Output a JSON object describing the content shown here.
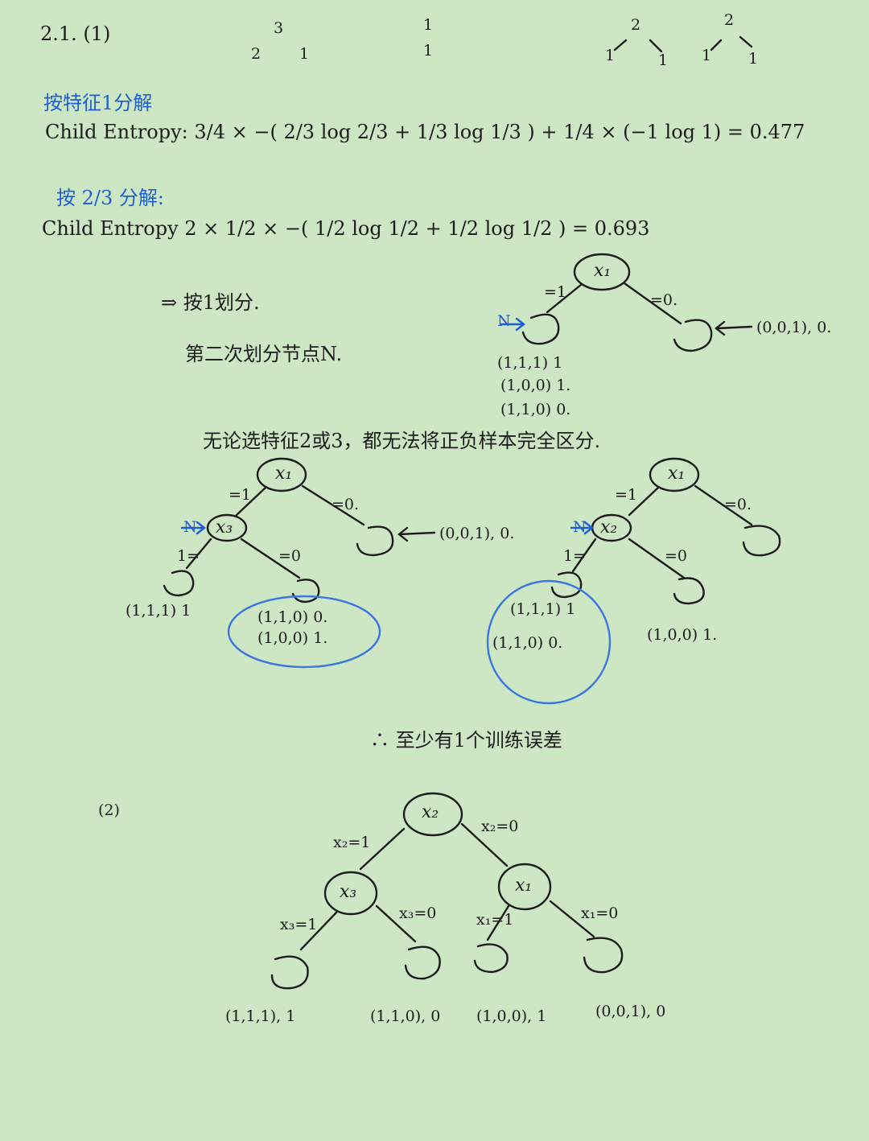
{
  "header": {
    "problem": "2.1. (1)",
    "tree_a_root": "3",
    "tree_a_left": "2",
    "tree_a_right": "1",
    "tree_b_root": "1",
    "tree_b_child": "1",
    "tree_c_root": "2",
    "tree_c_left": "1",
    "tree_c_right": "1",
    "tree_d_root": "2",
    "tree_d_left": "1",
    "tree_d_right": "1"
  },
  "split1": {
    "heading": "按特征1分解",
    "formula": "Child Entropy: 3/4 × −( 2/3 log 2/3 + 1/3 log 1/3 ) + 1/4 × (−1 log 1) = 0.477"
  },
  "split2": {
    "heading": "按 2/3 分解:",
    "formula": "Child Entropy 2 × 1/2 × −( 1/2 log 1/2 + 1/2 log 1/2 ) = 0.693"
  },
  "conclusion": {
    "text": "⇒ 按1划分.",
    "second": "第二次划分节点N."
  },
  "tree1": {
    "root": "x₁",
    "edge_left": "=1",
    "edge_right": "=0.",
    "node_marker": "N",
    "right_leaf": "(0,0,1), 0.",
    "samples": [
      "(1,1,1) 1",
      "(1,0,0) 1.",
      "(1,1,0) 0."
    ]
  },
  "note": "无论选特征2或3，都无法将正负样本完全区分.",
  "tree2": {
    "root": "x₁",
    "edge_left": "=1",
    "edge_right": "=0.",
    "child": "x₃",
    "node_marker": "N",
    "child_left": "1=",
    "child_right": "=0",
    "right_leaf": "(0,0,1), 0.",
    "leaf_left": "(1,1,1) 1",
    "leaf_right": [
      "(1,1,0) 0.",
      "(1,0,0) 1."
    ]
  },
  "tree3": {
    "root": "x₁",
    "edge_left": "=1",
    "edge_right": "=0.",
    "child": "x₂",
    "node_marker": "N",
    "child_left": "1=",
    "child_right": "=0",
    "leaf_left": [
      "(1,1,1) 1",
      "(1,1,0) 0."
    ],
    "leaf_right": "(1,0,0) 1."
  },
  "therefore": "∴ 至少有1个训练误差",
  "part2": {
    "label": "(2)",
    "root": "x₂",
    "edge_left": "x₂=1",
    "edge_right": "x₂=0",
    "left_node": "x₃",
    "right_node": "x₁",
    "ll_edge": "x₃=1",
    "lr_edge": "x₃=0",
    "rl_edge": "x₁=1",
    "rr_edge": "x₁=0",
    "leaves": [
      "(1,1,1), 1",
      "(1,1,0), 0",
      "(1,0,0), 1",
      "(0,0,1), 0"
    ]
  }
}
